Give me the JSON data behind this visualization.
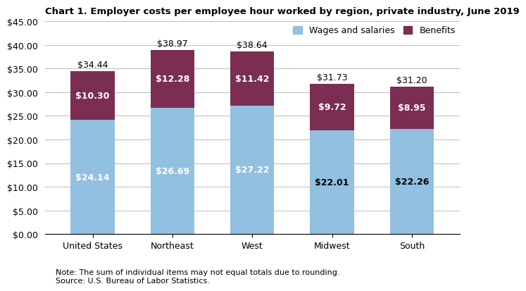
{
  "title": "Chart 1. Employer costs per employee hour worked by region, private industry, June 2019",
  "categories": [
    "United States",
    "Northeast",
    "West",
    "Midwest",
    "South"
  ],
  "wages": [
    24.14,
    26.69,
    27.22,
    22.01,
    22.26
  ],
  "benefits": [
    10.3,
    12.28,
    11.42,
    9.72,
    8.95
  ],
  "totals": [
    34.44,
    38.97,
    38.64,
    31.73,
    31.2
  ],
  "wages_color": "#92c0e0",
  "benefits_color": "#7b2d52",
  "wages_label": "Wages and salaries",
  "benefits_label": "Benefits",
  "ylim": [
    0,
    45
  ],
  "yticks": [
    0,
    5,
    10,
    15,
    20,
    25,
    30,
    35,
    40,
    45
  ],
  "note_line1": "Note: The sum of individual items may not equal totals due to rounding.",
  "note_line2": "Source: U.S. Bureau of Labor Statistics.",
  "title_fontsize": 9.5,
  "tick_fontsize": 9,
  "label_fontsize": 9,
  "note_fontsize": 8,
  "bar_width": 0.55,
  "background_color": "#ffffff",
  "grid_color": "#bbbbbb",
  "wages_text_colors": [
    "white",
    "white",
    "white",
    "black",
    "black"
  ],
  "benefits_text_colors": [
    "white",
    "white",
    "white",
    "white",
    "white"
  ]
}
